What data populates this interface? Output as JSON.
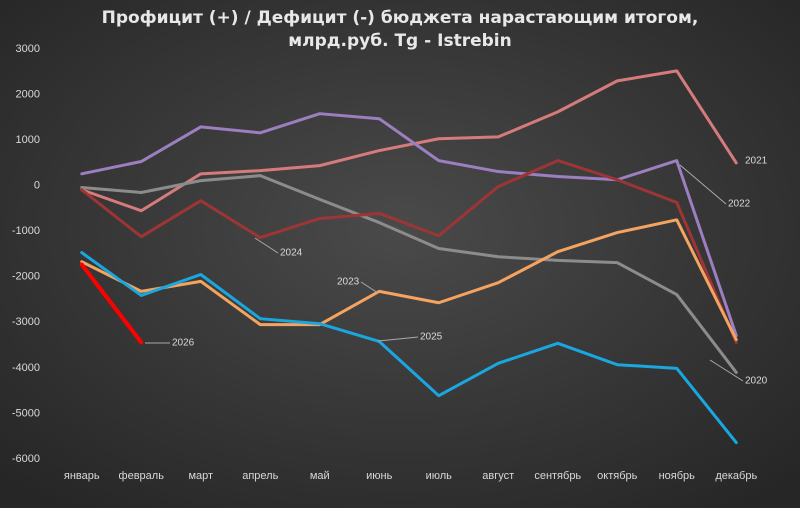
{
  "chart_data": {
    "type": "line",
    "title": [
      "Профицит (+) / Дефицит (-) бюджета нарастающим итогом,",
      "млрд.руб. Tg - Istrebin"
    ],
    "categories": [
      "январь",
      "февраль",
      "март",
      "апрель",
      "май",
      "июнь",
      "июль",
      "август",
      "сентябрь",
      "октябрь",
      "ноябрь",
      "декабрь"
    ],
    "ylim": [
      -6000,
      3000
    ],
    "yticks": [
      -6000,
      -5000,
      -4000,
      -3000,
      -2000,
      -1000,
      0,
      1000,
      2000,
      3000
    ],
    "grid": false,
    "series": [
      {
        "name": "2021",
        "color": "#d67b7b",
        "values": [
          -90,
          -550,
          260,
          330,
          440,
          770,
          1030,
          1070,
          1620,
          2300,
          2520,
          500
        ]
      },
      {
        "name": "2022",
        "color": "#9b7fc0",
        "values": [
          260,
          530,
          1290,
          1160,
          1580,
          1470,
          550,
          310,
          200,
          130,
          550,
          -3290
        ]
      },
      {
        "name": "2020",
        "color": "#8c8c8c",
        "values": [
          -40,
          -150,
          110,
          220,
          -300,
          -810,
          -1380,
          -1560,
          -1640,
          -1690,
          -2390,
          -4100
        ]
      },
      {
        "name": "2024",
        "color": "#9e3535",
        "values": [
          -90,
          -1120,
          -330,
          -1140,
          -720,
          -610,
          -1100,
          -20,
          550,
          130,
          -370,
          -3440
        ]
      },
      {
        "name": "2023",
        "color": "#f4a460",
        "values": [
          -1670,
          -2320,
          -2100,
          -3050,
          -3050,
          -2320,
          -2570,
          -2130,
          -1450,
          -1030,
          -750,
          -3380
        ]
      },
      {
        "name": "2025",
        "color": "#1aa7e0",
        "values": [
          -1470,
          -2410,
          -1950,
          -2920,
          -3030,
          -3420,
          -4610,
          -3900,
          -3460,
          -3930,
          -4010,
          -5640
        ]
      },
      {
        "name": "2026",
        "color": "#ff0000",
        "values": [
          -1730,
          -3440,
          null,
          null,
          null,
          null,
          null,
          null,
          null,
          null,
          null,
          null
        ]
      }
    ]
  }
}
